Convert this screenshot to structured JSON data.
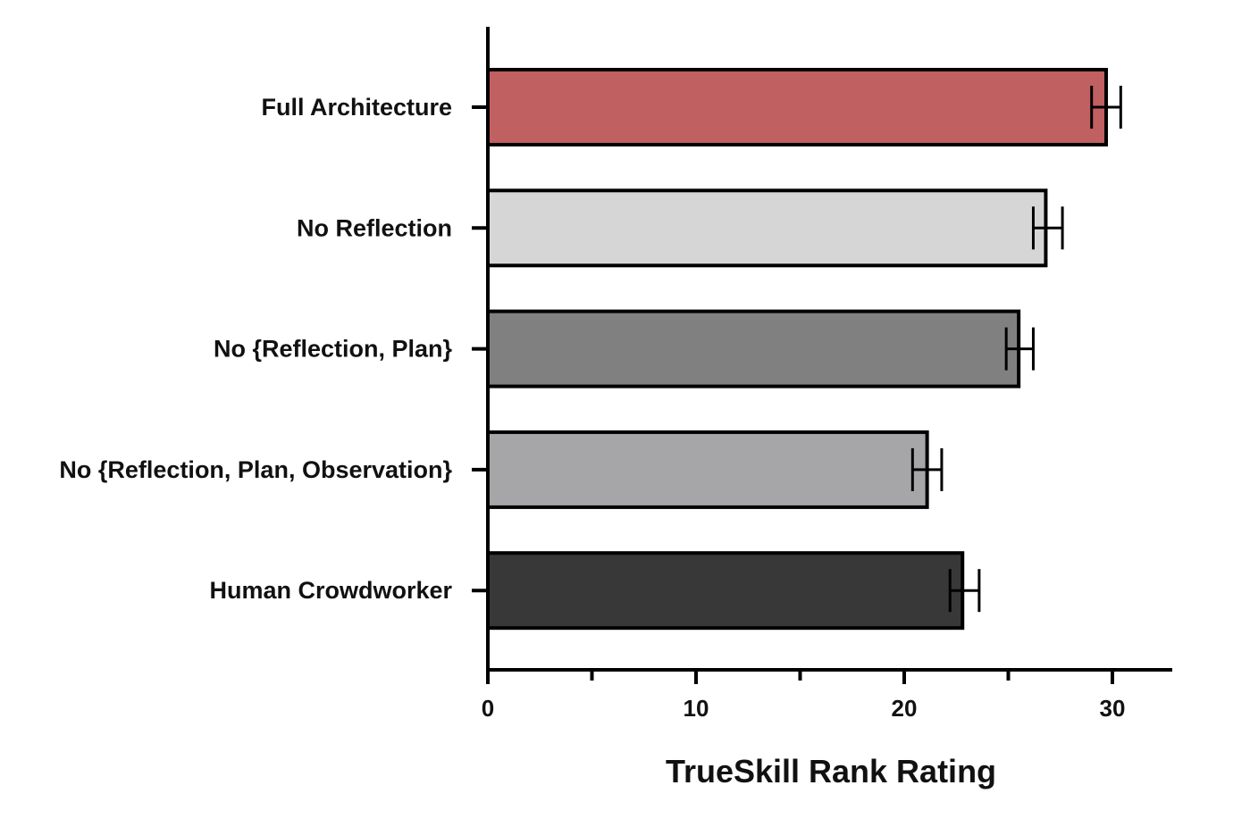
{
  "chart_data": {
    "type": "bar",
    "orientation": "horizontal",
    "title": "",
    "xlabel": "TrueSkill Rank Rating",
    "ylabel": "",
    "xlim": [
      0,
      33
    ],
    "x_ticks": [
      0,
      10,
      20,
      30
    ],
    "x_minor_ticks": [
      5,
      15,
      25
    ],
    "grid": false,
    "legend": "none",
    "categories": [
      "Full Architecture",
      "No Reflection",
      "No {Reflection, Plan}",
      "No {Reflection, Plan, Observation}",
      "Human Crowdworker"
    ],
    "values": [
      29.7,
      26.8,
      25.5,
      21.1,
      22.8
    ],
    "error_low": [
      29.0,
      26.2,
      24.9,
      20.4,
      22.2
    ],
    "error_high": [
      30.4,
      27.6,
      26.2,
      21.8,
      23.6
    ],
    "colors": [
      "#c06060",
      "#d6d6d6",
      "#808080",
      "#a6a6a8",
      "#383838"
    ]
  }
}
